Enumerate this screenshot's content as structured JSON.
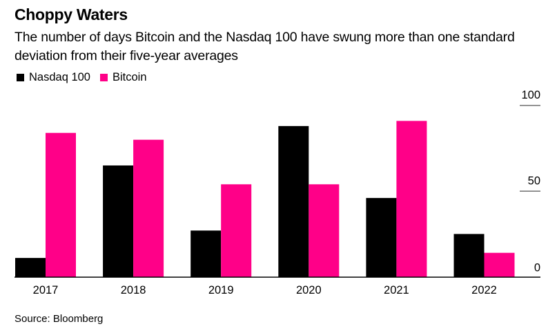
{
  "header": {
    "title": "Choppy Waters",
    "subtitle": "The number of days Bitcoin and the Nasdaq 100 have swung more than one standard deviation from their five-year averages"
  },
  "legend": [
    {
      "label": "Nasdaq 100",
      "color": "#000000"
    },
    {
      "label": "Bitcoin",
      "color": "#FF0088"
    }
  ],
  "footer": {
    "source": "Source: Bloomberg"
  },
  "chart_data": {
    "type": "bar",
    "title": "Choppy Waters",
    "subtitle": "The number of days Bitcoin and the Nasdaq 100 have swung more than one standard deviation from their five-year averages",
    "xlabel": "",
    "ylabel": "",
    "categories": [
      "2017",
      "2018",
      "2019",
      "2020",
      "2021",
      "2022"
    ],
    "series": [
      {
        "name": "Nasdaq 100",
        "color": "#000000",
        "values": [
          11,
          65,
          27,
          88,
          46,
          25
        ]
      },
      {
        "name": "Bitcoin",
        "color": "#FF0088",
        "values": [
          84,
          80,
          54,
          54,
          91,
          14
        ]
      }
    ],
    "ylim": [
      0,
      100
    ],
    "yticks": [
      0,
      50,
      100
    ],
    "ytick_labels": [
      "0",
      "50",
      "100"
    ],
    "y_axis_side": "right",
    "grid": false,
    "legend_position": "top-left",
    "source": "Source: Bloomberg"
  }
}
